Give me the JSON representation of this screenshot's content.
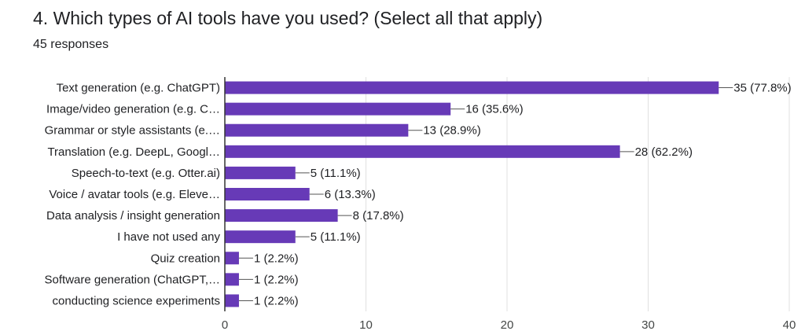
{
  "question": {
    "title": "4. Which types of AI tools have you used? (Select all that apply)",
    "responses": "45 responses"
  },
  "colors": {
    "bar": "#673ab7",
    "grid": "#e0e0e0",
    "axis": "#333333",
    "leader": "#555555"
  },
  "chart_data": {
    "type": "bar",
    "orientation": "horizontal",
    "categories": [
      "Text generation (e.g. ChatGPT)",
      "Image/video generation (e.g. C…",
      "Grammar or style assistants (e.…",
      "Translation (e.g. DeepL, Googl…",
      "Speech-to-text (e.g. Otter.ai)",
      "Voice / avatar tools (e.g. Eleve…",
      "Data analysis / insight generation",
      "I have not used any",
      "Quiz creation",
      "Software generation (ChatGPT,…",
      "conducting science experiments"
    ],
    "values": [
      35,
      16,
      13,
      28,
      5,
      6,
      8,
      5,
      1,
      1,
      1
    ],
    "data_labels": [
      "35 (77.8%)",
      "16 (35.6%)",
      "13 (28.9%)",
      "28 (62.2%)",
      "5 (11.1%)",
      "6 (13.3%)",
      "8 (17.8%)",
      "5 (11.1%)",
      "1 (2.2%)",
      "1 (2.2%)",
      "1 (2.2%)"
    ],
    "xlim": [
      0,
      40
    ],
    "xticks": [
      0,
      10,
      20,
      30,
      40
    ],
    "grid": true
  }
}
